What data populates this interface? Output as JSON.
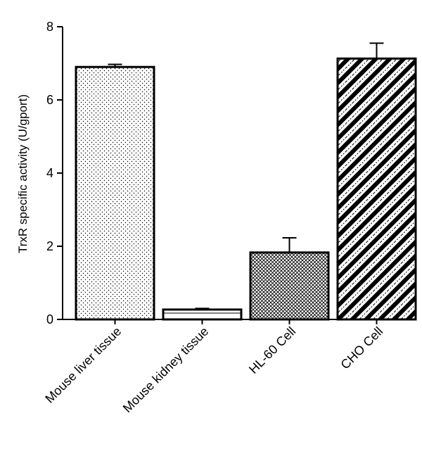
{
  "chart_data": {
    "type": "bar",
    "title": "",
    "xlabel": "",
    "ylabel": "TrxR specific activity (U/gport)",
    "ylim": [
      0,
      8
    ],
    "yticks": [
      0,
      2,
      4,
      6,
      8
    ],
    "categories": [
      "Mouse liver tissue",
      "Mouse kidney tissue",
      "HL-60 Cell",
      "CHO Cell"
    ],
    "values": [
      6.9,
      0.27,
      1.83,
      7.13
    ],
    "errors": [
      0.07,
      0.03,
      0.4,
      0.42
    ],
    "patterns": [
      "dots",
      "horizontal-lines",
      "crosshatch",
      "diagonal-stripes"
    ],
    "grid": false,
    "colors": {
      "stroke": "#000000",
      "background": "#ffffff"
    }
  }
}
